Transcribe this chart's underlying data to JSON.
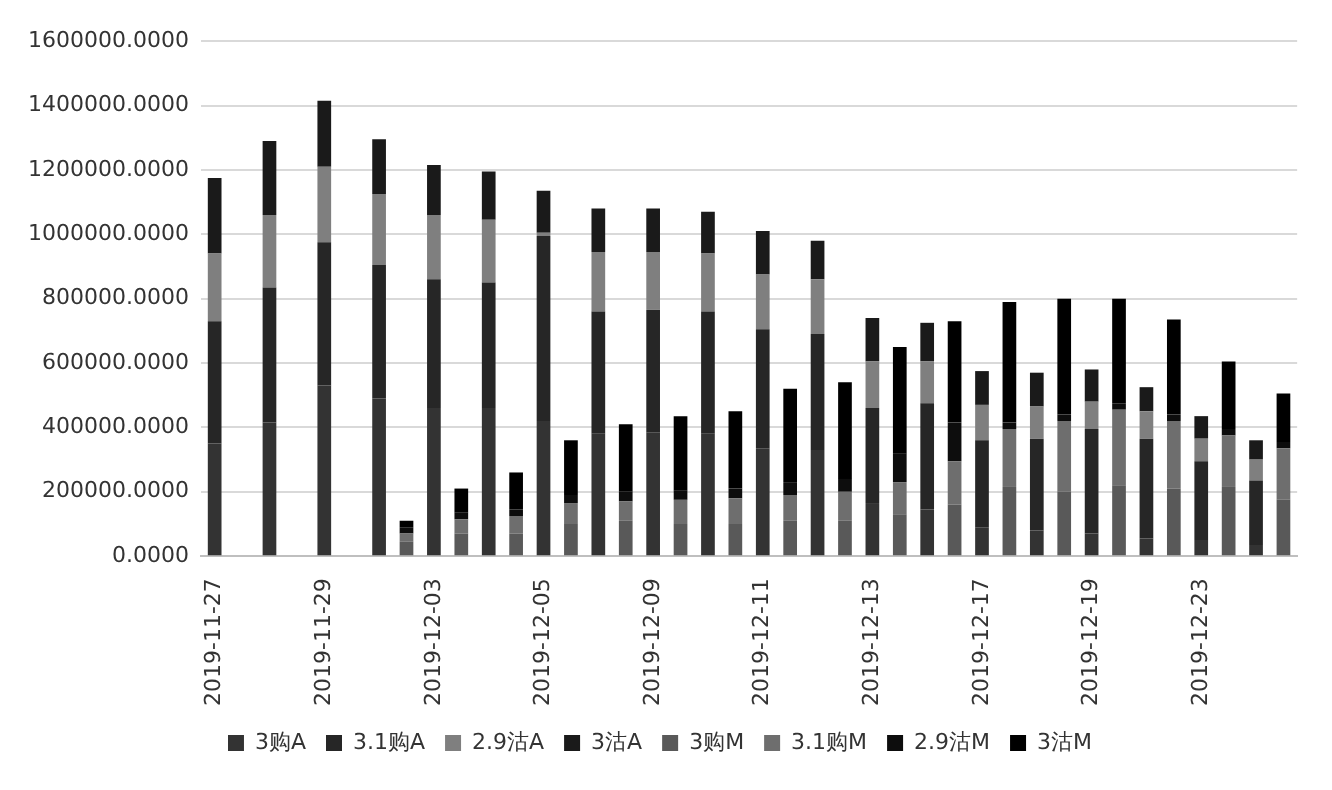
{
  "chart_data": {
    "type": "bar",
    "stacked": true,
    "legend": "bottom",
    "grid": "y",
    "categories": [
      "2019-11-27",
      null,
      null,
      null,
      "2019-11-29",
      null,
      null,
      null,
      "2019-12-03",
      null,
      null,
      null,
      "2019-12-05",
      null,
      null,
      null,
      "2019-12-09",
      null,
      null,
      null,
      "2019-12-11",
      null,
      null,
      null,
      "2019-12-13",
      null,
      null,
      null,
      "2019-12-17",
      null,
      null,
      null,
      "2019-12-19",
      null,
      null,
      null,
      "2019-12-23",
      null,
      null,
      null
    ],
    "ylim": [
      0,
      1600000
    ],
    "yticks": [
      {
        "value": 0,
        "label": "0.0000"
      },
      {
        "value": 200000,
        "label": "200000.0000"
      },
      {
        "value": 400000,
        "label": "400000.0000"
      },
      {
        "value": 600000,
        "label": "600000.0000"
      },
      {
        "value": 800000,
        "label": "800000.0000"
      },
      {
        "value": 1000000,
        "label": "1000000.0000"
      },
      {
        "value": 1200000,
        "label": "1200000.0000"
      },
      {
        "value": 1400000,
        "label": "1400000.0000"
      },
      {
        "value": 1600000,
        "label": "1600000.0000"
      }
    ],
    "series": [
      {
        "name": "3购A",
        "color": "#333333",
        "values": [
          350000,
          null,
          415000,
          null,
          530000,
          null,
          490000,
          null,
          460000,
          null,
          460000,
          null,
          420000,
          null,
          380000,
          null,
          385000,
          null,
          380000,
          null,
          335000,
          null,
          330000,
          null,
          165000,
          null,
          145000,
          null,
          90000,
          null,
          80000,
          null,
          70000,
          null,
          55000,
          null,
          50000,
          null,
          35000,
          null
        ]
      },
      {
        "name": "3.1购A",
        "color": "#262626",
        "values": [
          380000,
          null,
          420000,
          null,
          445000,
          null,
          415000,
          null,
          400000,
          null,
          390000,
          null,
          575000,
          null,
          380000,
          null,
          380000,
          null,
          380000,
          null,
          370000,
          null,
          360000,
          null,
          295000,
          null,
          330000,
          null,
          270000,
          null,
          285000,
          null,
          325000,
          null,
          310000,
          null,
          245000,
          null,
          200000,
          null
        ]
      },
      {
        "name": "2.9沽A",
        "color": "#7f7f7f",
        "values": [
          210000,
          null,
          225000,
          null,
          235000,
          null,
          220000,
          null,
          200000,
          null,
          195000,
          null,
          10000,
          null,
          185000,
          null,
          180000,
          null,
          180000,
          null,
          170000,
          null,
          170000,
          null,
          145000,
          null,
          130000,
          null,
          110000,
          null,
          100000,
          null,
          85000,
          null,
          85000,
          null,
          70000,
          null,
          65000,
          null
        ]
      },
      {
        "name": "3沽A",
        "color": "#1a1a1a",
        "values": [
          235000,
          null,
          230000,
          null,
          205000,
          null,
          170000,
          null,
          155000,
          null,
          150000,
          null,
          130000,
          null,
          135000,
          null,
          135000,
          null,
          130000,
          null,
          135000,
          null,
          120000,
          null,
          135000,
          null,
          120000,
          null,
          105000,
          null,
          105000,
          null,
          100000,
          null,
          75000,
          null,
          70000,
          null,
          60000,
          null
        ]
      },
      {
        "name": "3购M",
        "color": "#595959",
        "values": [
          null,
          null,
          null,
          null,
          null,
          null,
          null,
          45000,
          null,
          70000,
          null,
          70000,
          null,
          100000,
          null,
          110000,
          null,
          100000,
          null,
          100000,
          null,
          110000,
          null,
          110000,
          null,
          130000,
          null,
          160000,
          null,
          215000,
          null,
          200000,
          null,
          220000,
          null,
          210000,
          null,
          215000,
          null,
          175000
        ]
      },
      {
        "name": "3.1购M",
        "color": "#6e6e6e",
        "values": [
          null,
          null,
          null,
          null,
          null,
          null,
          null,
          25000,
          null,
          45000,
          null,
          55000,
          null,
          65000,
          null,
          60000,
          null,
          75000,
          null,
          80000,
          null,
          80000,
          null,
          90000,
          null,
          100000,
          null,
          135000,
          null,
          180000,
          null,
          220000,
          null,
          235000,
          null,
          210000,
          null,
          160000,
          null,
          160000
        ]
      },
      {
        "name": "2.9沽M",
        "color": "#0d0d0d",
        "values": [
          null,
          null,
          null,
          null,
          null,
          null,
          null,
          20000,
          null,
          20000,
          null,
          20000,
          null,
          25000,
          null,
          30000,
          null,
          30000,
          null,
          30000,
          null,
          40000,
          null,
          40000,
          null,
          90000,
          null,
          120000,
          null,
          20000,
          null,
          20000,
          null,
          20000,
          null,
          20000,
          null,
          20000,
          null,
          20000
        ]
      },
      {
        "name": "3沽M",
        "color": "#000000",
        "values": [
          null,
          null,
          null,
          null,
          null,
          null,
          null,
          20000,
          null,
          75000,
          null,
          115000,
          null,
          170000,
          null,
          210000,
          null,
          230000,
          null,
          240000,
          null,
          290000,
          null,
          300000,
          null,
          330000,
          null,
          315000,
          null,
          375000,
          null,
          360000,
          null,
          325000,
          null,
          295000,
          null,
          210000,
          null,
          150000
        ]
      }
    ]
  }
}
